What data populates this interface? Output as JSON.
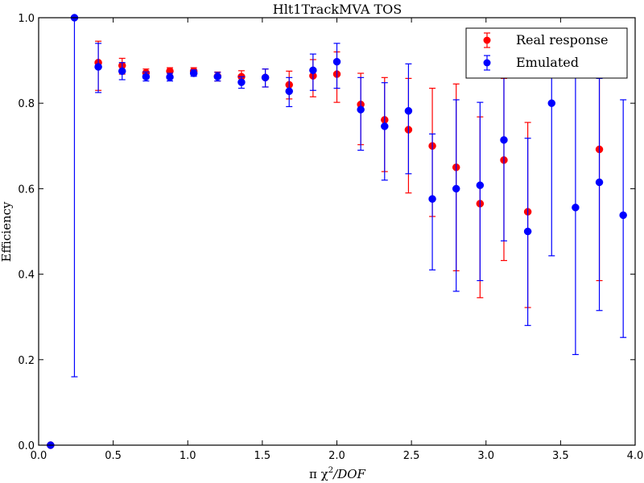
{
  "chart_data": {
    "type": "scatter",
    "title": "Hlt1TrackMVA TOS",
    "xlabel_parts": [
      "π χ",
      "2",
      "/DOF"
    ],
    "ylabel": "Efficiency",
    "xlim": [
      0.0,
      4.0
    ],
    "ylim": [
      0.0,
      1.0
    ],
    "x_ticks": [
      "0.0",
      "0.5",
      "1.0",
      "1.5",
      "2.0",
      "2.5",
      "3.0",
      "3.5",
      "4.0"
    ],
    "y_ticks": [
      "0.0",
      "0.2",
      "0.4",
      "0.6",
      "0.8",
      "1.0"
    ],
    "grid": false,
    "legend_position": "top-right",
    "series": [
      {
        "name": "Real response",
        "color": "#ff0000",
        "points": [
          {
            "x": 0.08,
            "y": 0.0,
            "yerr": [
              0.0,
              0.0
            ]
          },
          {
            "x": 0.4,
            "y": 0.895,
            "yerr": [
              0.83,
              0.945
            ]
          },
          {
            "x": 0.56,
            "y": 0.888,
            "yerr": [
              0.868,
              0.905
            ]
          },
          {
            "x": 0.72,
            "y": 0.871,
            "yerr": [
              0.861,
              0.88
            ]
          },
          {
            "x": 0.88,
            "y": 0.875,
            "yerr": [
              0.866,
              0.883
            ]
          },
          {
            "x": 1.04,
            "y": 0.875,
            "yerr": [
              0.867,
              0.883
            ]
          },
          {
            "x": 1.2,
            "y": 0.863,
            "yerr": [
              0.852,
              0.873
            ]
          },
          {
            "x": 1.36,
            "y": 0.862,
            "yerr": [
              0.848,
              0.876
            ]
          },
          {
            "x": 1.52,
            "y": 0.86,
            "yerr": [
              0.838,
              0.88
            ]
          },
          {
            "x": 1.68,
            "y": 0.843,
            "yerr": [
              0.81,
              0.875
            ]
          },
          {
            "x": 1.84,
            "y": 0.864,
            "yerr": [
              0.815,
              0.902
            ]
          },
          {
            "x": 2.0,
            "y": 0.868,
            "yerr": [
              0.802,
              0.92
            ]
          },
          {
            "x": 2.16,
            "y": 0.797,
            "yerr": [
              0.703,
              0.87
            ]
          },
          {
            "x": 2.32,
            "y": 0.761,
            "yerr": [
              0.64,
              0.86
            ]
          },
          {
            "x": 2.48,
            "y": 0.738,
            "yerr": [
              0.59,
              0.858
            ]
          },
          {
            "x": 2.64,
            "y": 0.7,
            "yerr": [
              0.535,
              0.835
            ]
          },
          {
            "x": 2.8,
            "y": 0.65,
            "yerr": [
              0.408,
              0.845
            ]
          },
          {
            "x": 2.96,
            "y": 0.565,
            "yerr": [
              0.345,
              0.768
            ]
          },
          {
            "x": 3.12,
            "y": 0.667,
            "yerr": [
              0.432,
              0.858
            ]
          },
          {
            "x": 3.28,
            "y": 0.546,
            "yerr": [
              0.322,
              0.755
            ]
          },
          {
            "x": 3.76,
            "y": 0.692,
            "yerr": [
              0.385,
              0.88
            ]
          }
        ]
      },
      {
        "name": "Emulated",
        "color": "#0000ff",
        "points": [
          {
            "x": 0.08,
            "y": 0.0,
            "yerr": [
              0.0,
              0.0
            ]
          },
          {
            "x": 0.24,
            "y": 1.0,
            "yerr": [
              0.16,
              1.0
            ]
          },
          {
            "x": 0.4,
            "y": 0.885,
            "yerr": [
              0.825,
              0.94
            ]
          },
          {
            "x": 0.56,
            "y": 0.875,
            "yerr": [
              0.855,
              0.895
            ]
          },
          {
            "x": 0.72,
            "y": 0.862,
            "yerr": [
              0.852,
              0.873
            ]
          },
          {
            "x": 0.88,
            "y": 0.861,
            "yerr": [
              0.852,
              0.87
            ]
          },
          {
            "x": 1.04,
            "y": 0.87,
            "yerr": [
              0.863,
              0.878
            ]
          },
          {
            "x": 1.2,
            "y": 0.862,
            "yerr": [
              0.852,
              0.872
            ]
          },
          {
            "x": 1.36,
            "y": 0.849,
            "yerr": [
              0.835,
              0.862
            ]
          },
          {
            "x": 1.52,
            "y": 0.86,
            "yerr": [
              0.838,
              0.88
            ]
          },
          {
            "x": 1.68,
            "y": 0.828,
            "yerr": [
              0.792,
              0.86
            ]
          },
          {
            "x": 1.84,
            "y": 0.877,
            "yerr": [
              0.83,
              0.915
            ]
          },
          {
            "x": 2.0,
            "y": 0.897,
            "yerr": [
              0.835,
              0.94
            ]
          },
          {
            "x": 2.16,
            "y": 0.785,
            "yerr": [
              0.69,
              0.86
            ]
          },
          {
            "x": 2.32,
            "y": 0.746,
            "yerr": [
              0.62,
              0.848
            ]
          },
          {
            "x": 2.48,
            "y": 0.782,
            "yerr": [
              0.635,
              0.892
            ]
          },
          {
            "x": 2.64,
            "y": 0.576,
            "yerr": [
              0.41,
              0.728
            ]
          },
          {
            "x": 2.8,
            "y": 0.6,
            "yerr": [
              0.36,
              0.808
            ]
          },
          {
            "x": 2.96,
            "y": 0.608,
            "yerr": [
              0.385,
              0.802
            ]
          },
          {
            "x": 3.12,
            "y": 0.714,
            "yerr": [
              0.478,
              0.87
            ]
          },
          {
            "x": 3.28,
            "y": 0.5,
            "yerr": [
              0.28,
              0.718
            ]
          },
          {
            "x": 3.44,
            "y": 0.8,
            "yerr": [
              0.443,
              0.95
            ]
          },
          {
            "x": 3.6,
            "y": 0.556,
            "yerr": [
              0.212,
              0.862
            ]
          },
          {
            "x": 3.76,
            "y": 0.615,
            "yerr": [
              0.315,
              0.858
            ]
          },
          {
            "x": 3.92,
            "y": 0.538,
            "yerr": [
              0.252,
              0.808
            ]
          }
        ]
      }
    ]
  }
}
